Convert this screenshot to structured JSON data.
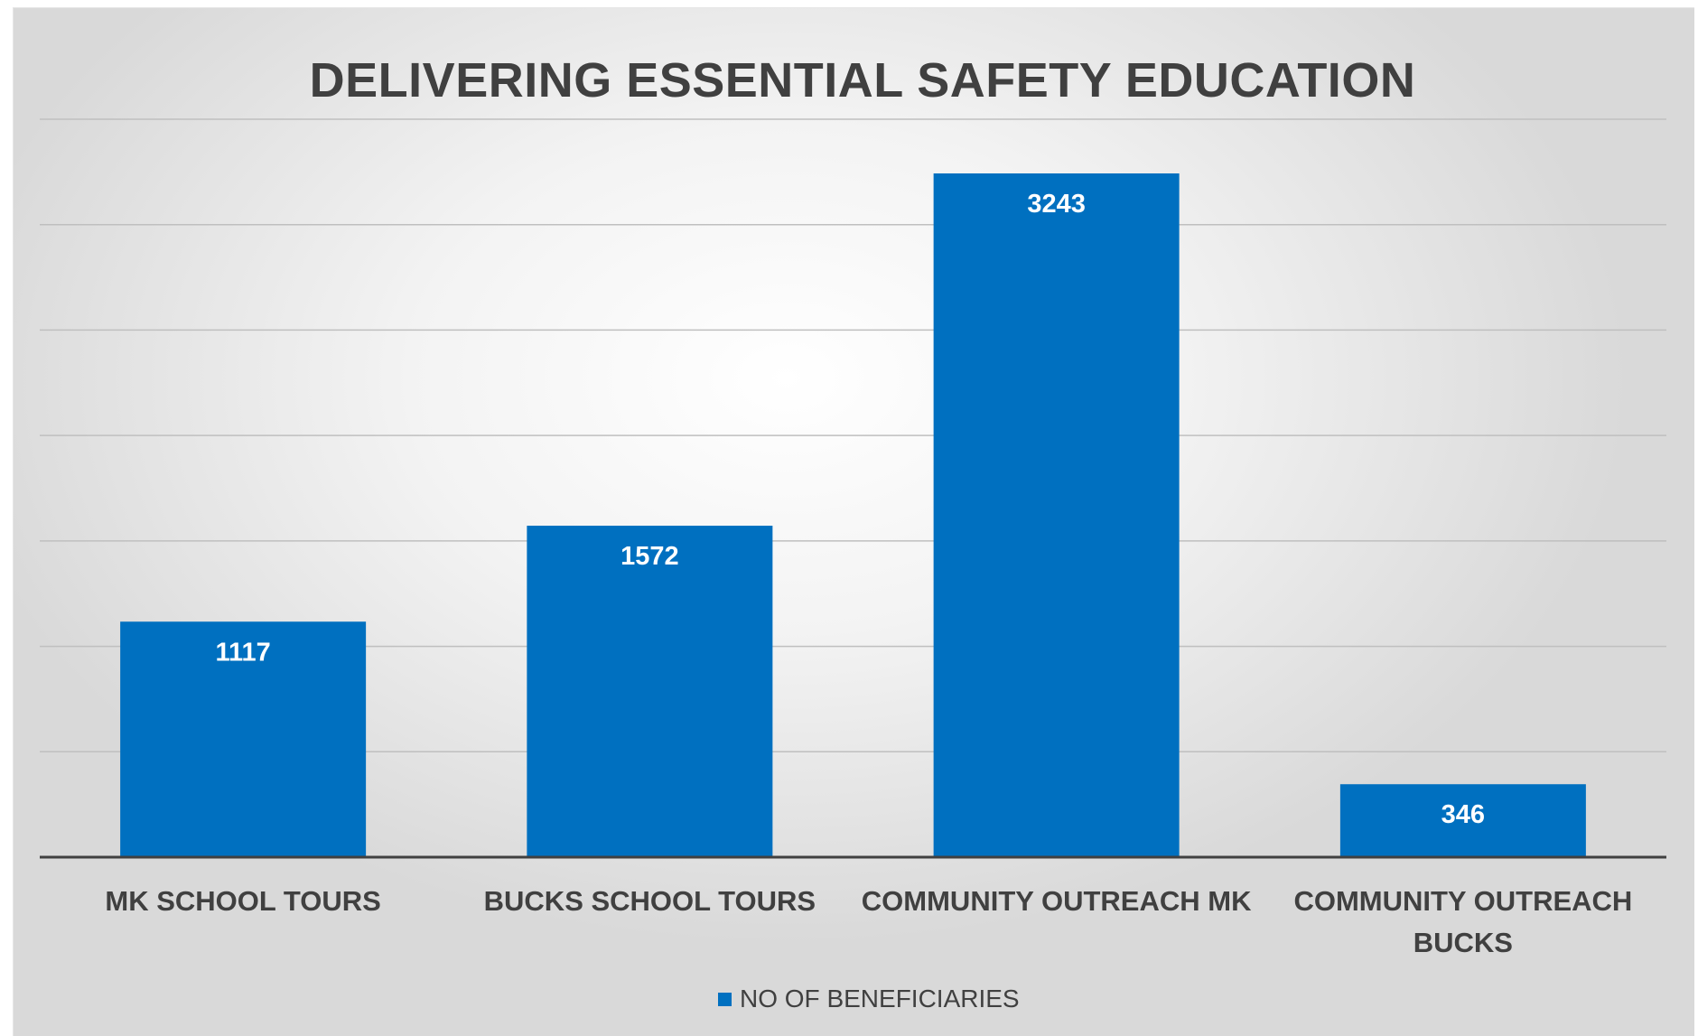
{
  "colors": {
    "bar": "#0070c0",
    "axis_text": "#404040",
    "grid": "#bfbfbf",
    "baseline": "#404040",
    "data_label": "#ffffff"
  },
  "chart_data": {
    "type": "bar",
    "title": "DELIVERING ESSENTIAL SAFETY EDUCATION",
    "categories": [
      [
        "MK SCHOOL TOURS"
      ],
      [
        "BUCKS SCHOOL TOURS"
      ],
      [
        "COMMUNITY OUTREACH MK"
      ],
      [
        "COMMUNITY OUTREACH",
        "BUCKS"
      ]
    ],
    "series": [
      {
        "name": "NO OF BENEFICIARIES",
        "values": [
          1117,
          1572,
          3243,
          346
        ],
        "labels": [
          "1117",
          "1572",
          "3243",
          "346"
        ]
      }
    ],
    "ylim": [
      0,
      3500
    ],
    "ystep": 500,
    "grid": true,
    "legend": "bottom-center"
  }
}
